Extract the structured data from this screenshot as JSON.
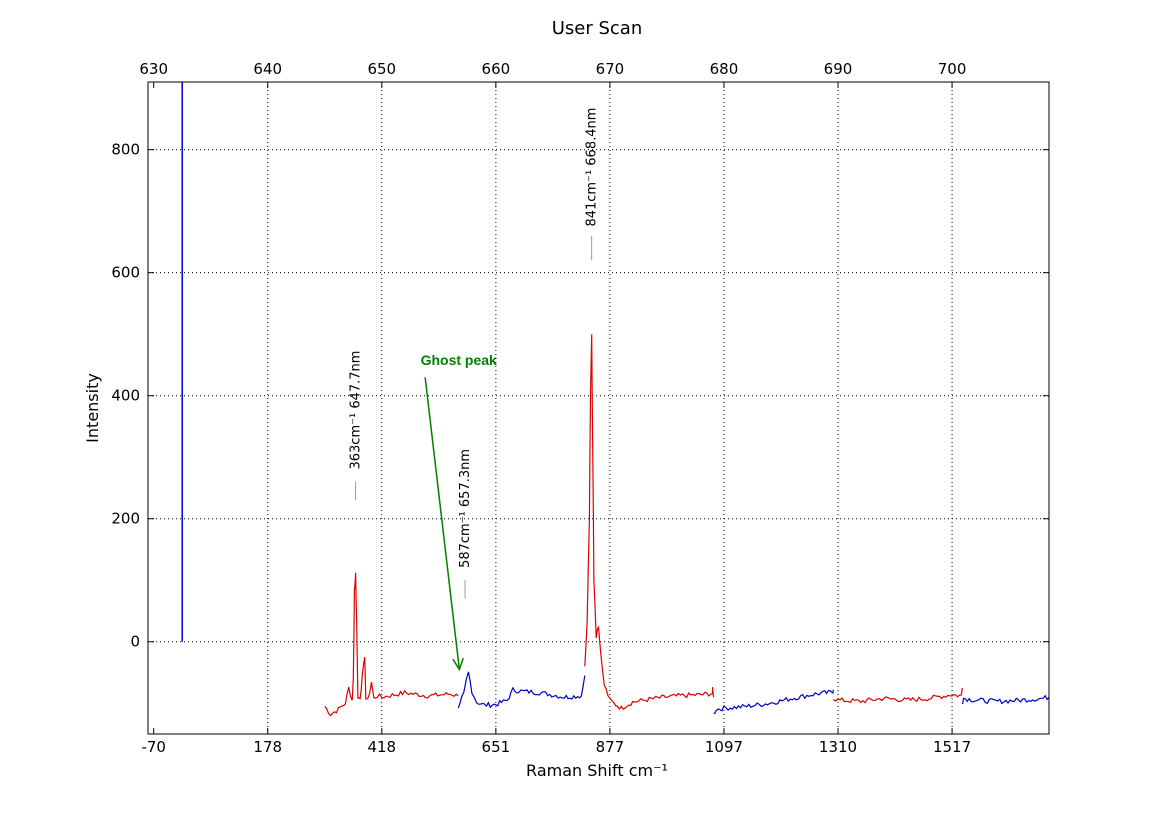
{
  "chart_data": {
    "type": "line",
    "title": "User Scan",
    "xlabel": "Raman Shift cm⁻¹",
    "ylabel": "Intensity",
    "ylim": [
      -150,
      910
    ],
    "yticks": [
      0,
      200,
      400,
      600,
      800
    ],
    "xlim_nm": [
      629.5,
      708.5
    ],
    "top_xticks": [
      "630",
      "640",
      "650",
      "660",
      "670",
      "680",
      "690",
      "700"
    ],
    "bottom_xticks": [
      "-70",
      "178",
      "418",
      "651",
      "877",
      "1097",
      "1310",
      "1517"
    ],
    "grid": true,
    "colors": {
      "red": "#dd0000",
      "blue": "#0000cc",
      "ghost": "#008000",
      "grid": "#000000"
    },
    "laser_line": {
      "x_nm": 632.5,
      "y0": 0,
      "y1": 910,
      "color": "blue"
    },
    "segments": [
      {
        "color": "red",
        "x": [
          645.0,
          645.5,
          646.2,
          646.8,
          647.1,
          647.4,
          647.5,
          647.6,
          647.7,
          647.8,
          647.9,
          648.1,
          648.3,
          648.5,
          648.6,
          648.8,
          649.1,
          649.3,
          649.6,
          650.0,
          652.0,
          654.0,
          656.0,
          656.7
        ],
        "y": [
          -105,
          -118,
          -110,
          -100,
          -75,
          -95,
          -60,
          80,
          112,
          30,
          -92,
          -90,
          -55,
          -25,
          -90,
          -95,
          -65,
          -92,
          -88,
          -90,
          -83,
          -88,
          -85,
          -88
        ]
      },
      {
        "color": "blue",
        "x": [
          656.7,
          657.0,
          657.2,
          657.4,
          657.6,
          657.9,
          658.3,
          659.0,
          660.0,
          661.0,
          661.5,
          662.0,
          664.0,
          666.0,
          667.5,
          667.8
        ],
        "y": [
          -105,
          -92,
          -85,
          -65,
          -50,
          -80,
          -98,
          -103,
          -102,
          -95,
          -78,
          -80,
          -83,
          -90,
          -88,
          -55
        ]
      },
      {
        "color": "red",
        "x": [
          667.8,
          668.0,
          668.2,
          668.3,
          668.4,
          668.5,
          668.6,
          668.8,
          669.0,
          669.2,
          669.5,
          670.0,
          670.5,
          671.0,
          672.0,
          674.0,
          676.0,
          678.0,
          679.0,
          679.0,
          679.1
        ],
        "y": [
          -40,
          30,
          200,
          400,
          500,
          300,
          100,
          10,
          25,
          -20,
          -70,
          -95,
          -102,
          -108,
          -98,
          -92,
          -88,
          -86,
          -84,
          -75,
          -90
        ]
      },
      {
        "color": "blue",
        "x": [
          679.1,
          679.3,
          680.0,
          682.0,
          684.0,
          686.0,
          688.0,
          689.5,
          689.6
        ],
        "y": [
          -118,
          -110,
          -108,
          -105,
          -100,
          -92,
          -85,
          -82,
          -78
        ]
      },
      {
        "color": "red",
        "x": [
          689.6,
          690.0,
          692.0,
          694.0,
          696.0,
          698.0,
          700.0,
          700.8,
          700.9
        ],
        "y": [
          -92,
          -95,
          -97,
          -92,
          -95,
          -92,
          -86,
          -88,
          -75
        ]
      },
      {
        "color": "blue",
        "x": [
          700.9,
          701.0,
          702.0,
          704.0,
          706.0,
          708.0,
          708.5
        ],
        "y": [
          -98,
          -92,
          -95,
          -97,
          -95,
          -92,
          -90
        ]
      }
    ],
    "peaks": [
      {
        "label": "363cm⁻¹  647.7nm",
        "x_nm": 647.7,
        "y_line_from": 230,
        "y_line_to": 260,
        "y_text": 280
      },
      {
        "label": "587cm⁻¹  657.3nm",
        "x_nm": 657.3,
        "y_line_from": 70,
        "y_line_to": 100,
        "y_text": 120
      },
      {
        "label": "841cm⁻¹  668.4nm",
        "x_nm": 668.4,
        "y_line_from": 620,
        "y_line_to": 660,
        "y_text": 675
      }
    ],
    "ghost_annotation": {
      "text": "Ghost peak",
      "text_x_nm": 653.4,
      "text_y": 450,
      "arrow_from_x_nm": 653.8,
      "arrow_from_y": 430,
      "arrow_to_x_nm": 656.8,
      "arrow_to_y": -45
    }
  }
}
